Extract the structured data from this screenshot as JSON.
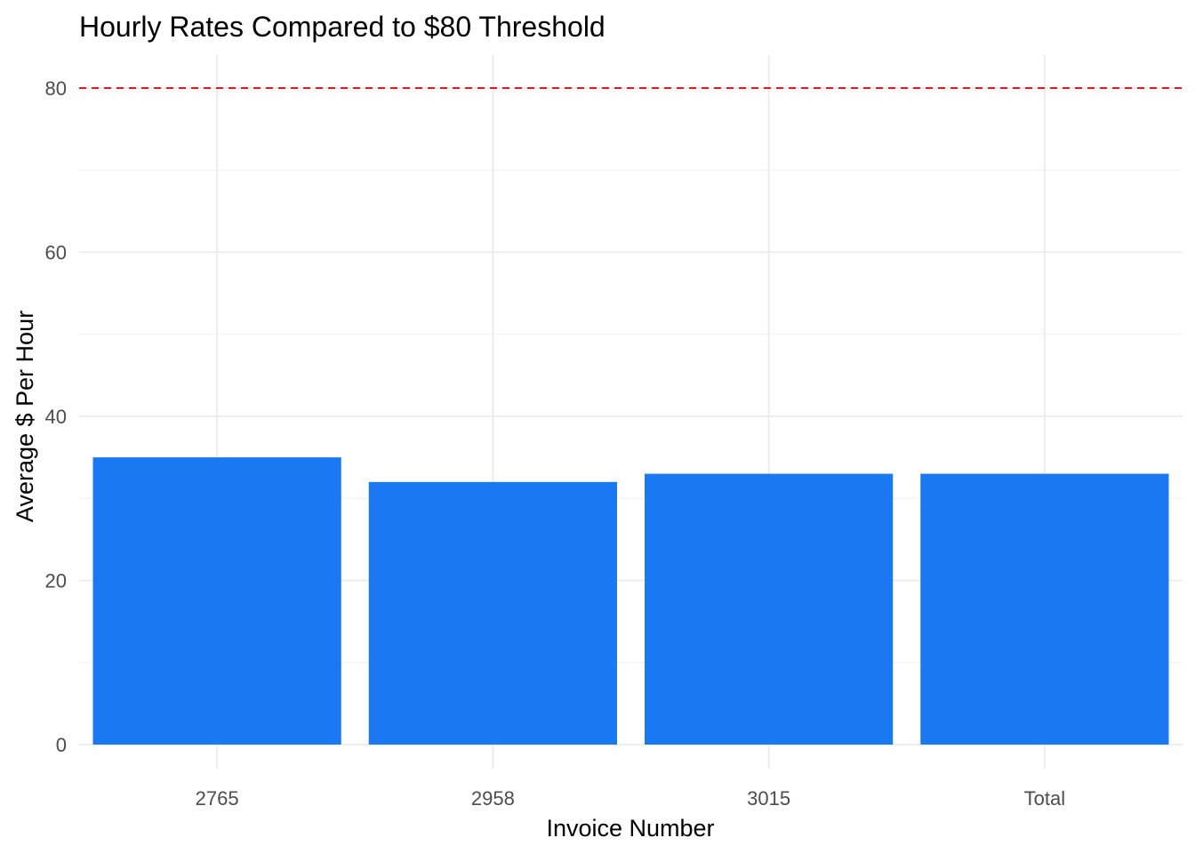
{
  "chart_data": {
    "type": "bar",
    "title": "Hourly Rates Compared to $80 Threshold",
    "xlabel": "Invoice Number",
    "ylabel": "Average $ Per Hour",
    "categories": [
      "2765",
      "2958",
      "3015",
      "Total"
    ],
    "values": [
      35,
      32,
      33,
      33
    ],
    "ylim": [
      0,
      80
    ],
    "yticks": [
      "0",
      "20",
      "40",
      "60",
      "80"
    ],
    "grid": true,
    "legend": "none",
    "bar_color": "#1a78f2",
    "reference_line": {
      "value": 80,
      "style": "dashed",
      "color": "#e8141f"
    }
  }
}
